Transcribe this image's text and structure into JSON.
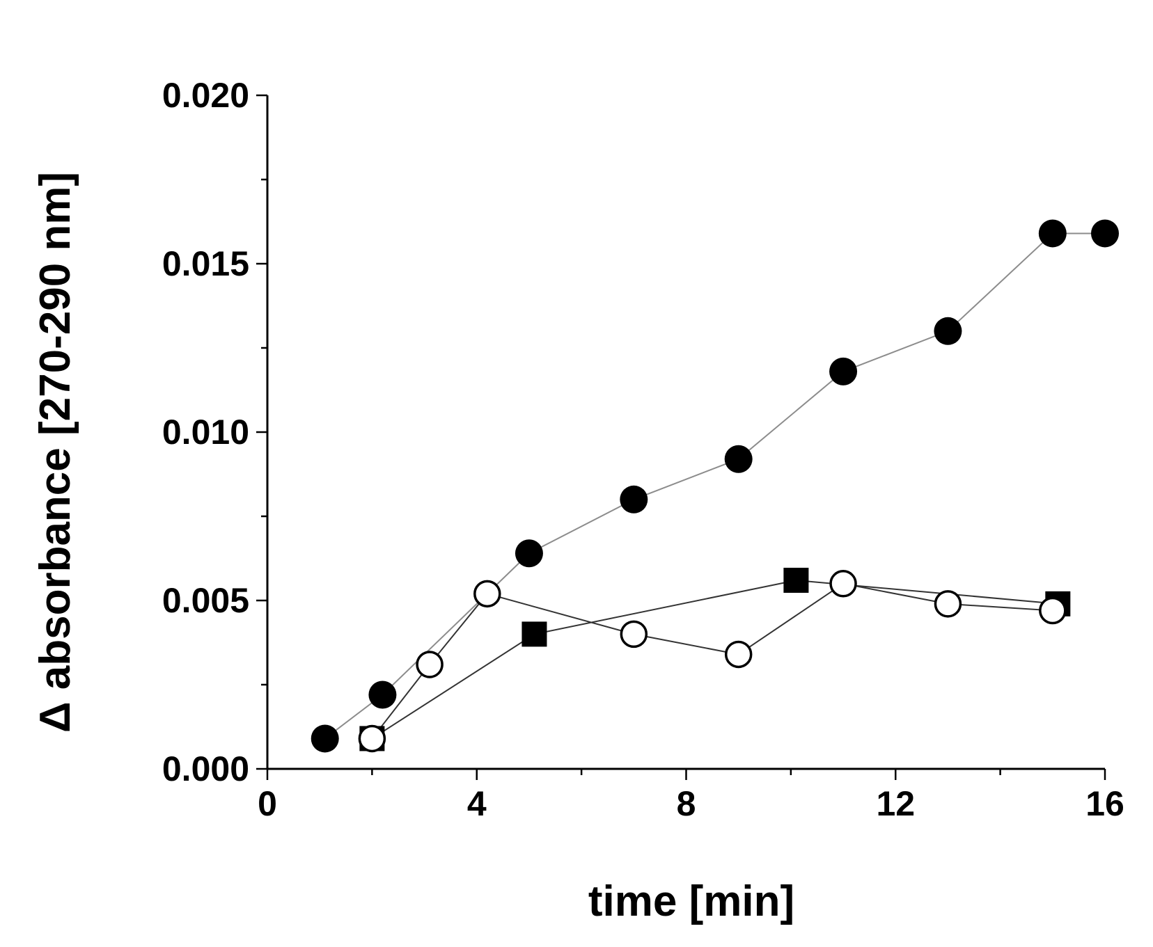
{
  "chart_data": {
    "type": "line",
    "title": "",
    "xlabel": "time [min]",
    "ylabel": "Δ absorbance [270-290 nm]",
    "xlim": [
      0,
      16
    ],
    "ylim": [
      0,
      0.02
    ],
    "xticks": [
      0,
      4,
      8,
      12,
      16
    ],
    "xtick_labels": [
      "0",
      "4",
      "8",
      "12",
      "16"
    ],
    "yticks": [
      0,
      0.005,
      0.01,
      0.015,
      0.02
    ],
    "ytick_labels": [
      "0.000",
      "0.005",
      "0.010",
      "0.015",
      "0.020"
    ],
    "grid": false,
    "legend": "none",
    "series": [
      {
        "name": "filled circles",
        "marker": "circle-filled",
        "line_color": "#8c8c8c",
        "x": [
          1.1,
          2.2,
          5.0,
          7.0,
          9.0,
          11.0,
          13.0,
          15.0,
          16.0
        ],
        "y": [
          0.0009,
          0.0022,
          0.0064,
          0.008,
          0.0092,
          0.0118,
          0.013,
          0.0159,
          0.0159
        ]
      },
      {
        "name": "filled squares",
        "marker": "square-filled",
        "line_color": "#333333",
        "x": [
          2.0,
          5.1,
          10.1,
          15.1
        ],
        "y": [
          0.0009,
          0.004,
          0.0056,
          0.0049
        ]
      },
      {
        "name": "open circles",
        "marker": "circle-open",
        "line_color": "#333333",
        "x": [
          2.0,
          3.1,
          4.2,
          7.0,
          9.0,
          11.0,
          13.0,
          15.0
        ],
        "y": [
          0.0009,
          0.0031,
          0.0052,
          0.004,
          0.0034,
          0.0055,
          0.0049,
          0.0047
        ]
      }
    ]
  }
}
